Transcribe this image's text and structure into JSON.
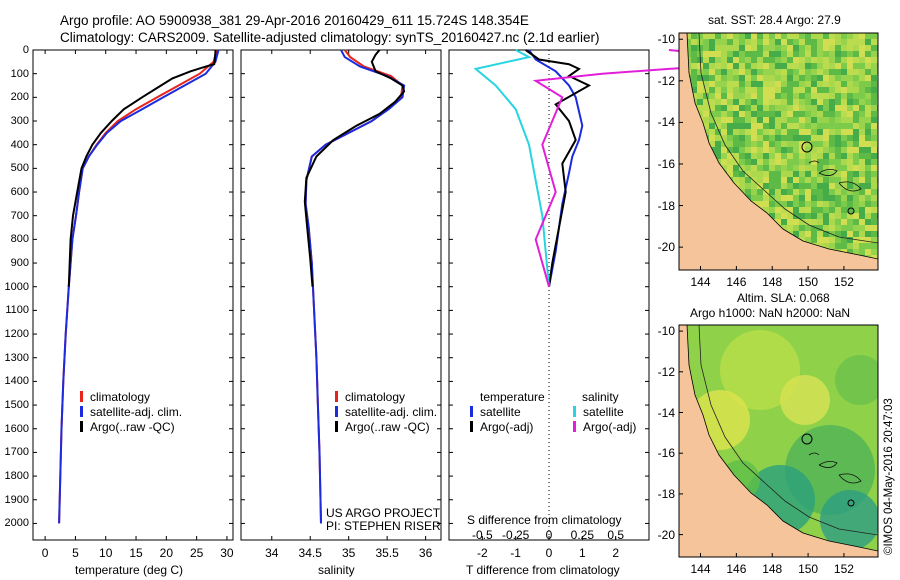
{
  "header": {
    "line1": "Argo profile: AO 5900938_381 29-Apr-2016 20160429_611 15.724S 148.354E",
    "line2": "Climatology: CARS2009. Satellite-adjusted climatology: synTS_20160427.nc (2.1d earlier)"
  },
  "colors": {
    "clim": "#e8231b",
    "sat": "#1a2be0",
    "argo": "#000000",
    "sat_s": "#27d4e0",
    "argo_s": "#e21fd8",
    "land": "#f6c49b"
  },
  "depth_axis": {
    "ticks": [
      "0",
      "100",
      "200",
      "300",
      "400",
      "500",
      "600",
      "700",
      "800",
      "900",
      "1000",
      "1100",
      "1200",
      "1300",
      "1400",
      "1500",
      "1600",
      "1700",
      "1800",
      "1900",
      "2000"
    ]
  },
  "legend": {
    "clim": "climatology",
    "sat": "satellite-adj. clim.",
    "argo": "Argo(..raw -QC)"
  },
  "diff_legend": {
    "t_head": "temperature",
    "s_head": "salinity",
    "t_sat": "satellite",
    "t_argo": "Argo(-adj)",
    "s_sat": "satellite",
    "s_argo": "Argo(-adj)"
  },
  "project": {
    "line1": "US ARGO PROJECT",
    "line2": "PI: STEPHEN RISER"
  },
  "chart_data": [
    {
      "type": "line",
      "xlabel": "temperature (deg C)",
      "ylabel": "depth",
      "xlim": [
        -2,
        31
      ],
      "ylim": [
        2070,
        0
      ],
      "xticks": [
        "0",
        "5",
        "10",
        "15",
        "20",
        "25",
        "30"
      ],
      "series": [
        {
          "name": "climatology",
          "x": [
            28.3,
            27.8,
            25.5,
            22,
            18.5,
            15,
            12,
            10,
            8.5,
            7.2,
            6.2,
            5.6,
            5.1,
            4.5,
            3.9,
            3.4,
            3,
            2.7,
            2.5,
            2.3
          ],
          "y": [
            0,
            50,
            100,
            150,
            200,
            250,
            300,
            350,
            400,
            450,
            500,
            600,
            700,
            800,
            1000,
            1200,
            1400,
            1600,
            1800,
            2000
          ]
        },
        {
          "name": "satellite-adj. clim.",
          "x": [
            28.6,
            28.1,
            26.5,
            23,
            19.5,
            16,
            12.5,
            10.2,
            8.6,
            7.2,
            6.2,
            5.6,
            5.1,
            4.5,
            3.9,
            3.4,
            3,
            2.7,
            2.5,
            2.3
          ],
          "y": [
            0,
            50,
            100,
            150,
            200,
            250,
            300,
            350,
            400,
            450,
            500,
            600,
            700,
            800,
            1000,
            1200,
            1400,
            1600,
            1800,
            2000
          ]
        },
        {
          "name": "Argo(..raw -QC)",
          "x": [
            28.1,
            28.1,
            28,
            27.9,
            26.5,
            24,
            21,
            18.5,
            16,
            13,
            11,
            9.2,
            7.8,
            6.8,
            6,
            5.3,
            4.6,
            4.2,
            3.9
          ],
          "y": [
            0,
            10,
            40,
            60,
            70,
            90,
            120,
            160,
            200,
            250,
            300,
            350,
            400,
            450,
            500,
            600,
            700,
            800,
            1000
          ]
        }
      ]
    },
    {
      "type": "line",
      "xlabel": "salinity",
      "ylabel": "depth",
      "xlim": [
        33.6,
        36.2
      ],
      "ylim": [
        2070,
        0
      ],
      "xticks": [
        "34",
        "34.5",
        "35",
        "35.5",
        "36"
      ],
      "series": [
        {
          "name": "climatology",
          "x": [
            34.95,
            35.02,
            35.2,
            35.55,
            35.7,
            35.68,
            35.5,
            35.3,
            35.0,
            34.7,
            34.52,
            34.45,
            34.44,
            34.48,
            34.52,
            34.55,
            34.58,
            34.6,
            34.62,
            34.64
          ],
          "y": [
            0,
            30,
            70,
            110,
            150,
            200,
            250,
            300,
            350,
            400,
            450,
            550,
            650,
            750,
            900,
            1100,
            1300,
            1500,
            1700,
            2000
          ]
        },
        {
          "name": "satellite-adj. clim.",
          "x": [
            34.9,
            34.95,
            35.15,
            35.5,
            35.72,
            35.7,
            35.52,
            35.3,
            35.0,
            34.7,
            34.52,
            34.45,
            34.44,
            34.48,
            34.52,
            34.55,
            34.58,
            34.6,
            34.62,
            34.64
          ],
          "y": [
            0,
            30,
            70,
            110,
            150,
            200,
            250,
            300,
            350,
            400,
            450,
            550,
            650,
            750,
            900,
            1100,
            1300,
            1500,
            1700,
            2000
          ]
        },
        {
          "name": "Argo(..raw -QC)",
          "x": [
            35.4,
            35.35,
            35.3,
            35.35,
            35.55,
            35.7,
            35.72,
            35.6,
            35.4,
            35.1,
            34.8,
            34.58,
            34.45,
            34.43,
            34.46,
            34.5,
            34.53
          ],
          "y": [
            0,
            20,
            50,
            90,
            120,
            150,
            175,
            220,
            270,
            320,
            380,
            450,
            540,
            640,
            750,
            880,
            1000
          ]
        }
      ]
    },
    {
      "type": "line",
      "xlabel": "T difference from climatology",
      "xlabel2": "S difference from climatology",
      "ylabel": "depth",
      "xlim": [
        -3,
        3.0
      ],
      "ylim": [
        2070,
        0
      ],
      "xticks": [
        "-2",
        "-1",
        "0",
        "1",
        "2"
      ],
      "xticks2": [
        "-0.5",
        "-0.25",
        "0",
        "0.25",
        "0.5"
      ],
      "series": [
        {
          "name": "temperature satellite",
          "x": [
            -0.6,
            -0.4,
            0.2,
            0.6,
            0.8,
            0.9,
            1.0,
            0.9,
            0.7,
            0.6,
            0.4,
            0.2,
            0
          ],
          "y": [
            0,
            40,
            90,
            150,
            200,
            260,
            320,
            380,
            450,
            520,
            650,
            850,
            1000
          ]
        },
        {
          "name": "temperature Argo(-adj)",
          "x": [
            -0.7,
            -0.3,
            0.6,
            0.9,
            0.6,
            1.2,
            0.2,
            0.6,
            0.8,
            0.4,
            0.5,
            0.3,
            0.1,
            0
          ],
          "y": [
            0,
            40,
            60,
            80,
            110,
            150,
            230,
            300,
            380,
            480,
            600,
            750,
            900,
            1000
          ]
        },
        {
          "name": "salinity satellite",
          "x": [
            -0.25,
            -0.15,
            -0.55,
            -0.4,
            -0.25,
            -0.15,
            -0.05,
            0
          ],
          "y": [
            0,
            30,
            80,
            150,
            250,
            400,
            700,
            1000
          ]
        },
        {
          "name": "salinity Argo(-adj)",
          "x": [
            0.9,
            1.8,
            0.9,
            0.4,
            -0.1,
            0.1,
            -0.05,
            0.05,
            -0.1,
            0
          ],
          "y": [
            0,
            50,
            80,
            100,
            130,
            200,
            400,
            600,
            800,
            1000
          ]
        }
      ]
    }
  ],
  "map1": {
    "title": "sat. SST: 28.4  Argo: 27.9",
    "yticks": [
      "-10",
      "-12",
      "-14",
      "-16",
      "-18",
      "-20"
    ],
    "xticks": [
      "144",
      "146",
      "148",
      "150",
      "152"
    ]
  },
  "map2": {
    "title1": "Altim. SLA: 0.068",
    "title2": "Argo h1000: NaN h2000: NaN",
    "yticks": [
      "-10",
      "-12",
      "-14",
      "-16",
      "-18",
      "-20"
    ],
    "xticks": [
      "144",
      "146",
      "148",
      "150",
      "152"
    ]
  },
  "watermark": "©IMOS 04-May-2016 20:47:03"
}
